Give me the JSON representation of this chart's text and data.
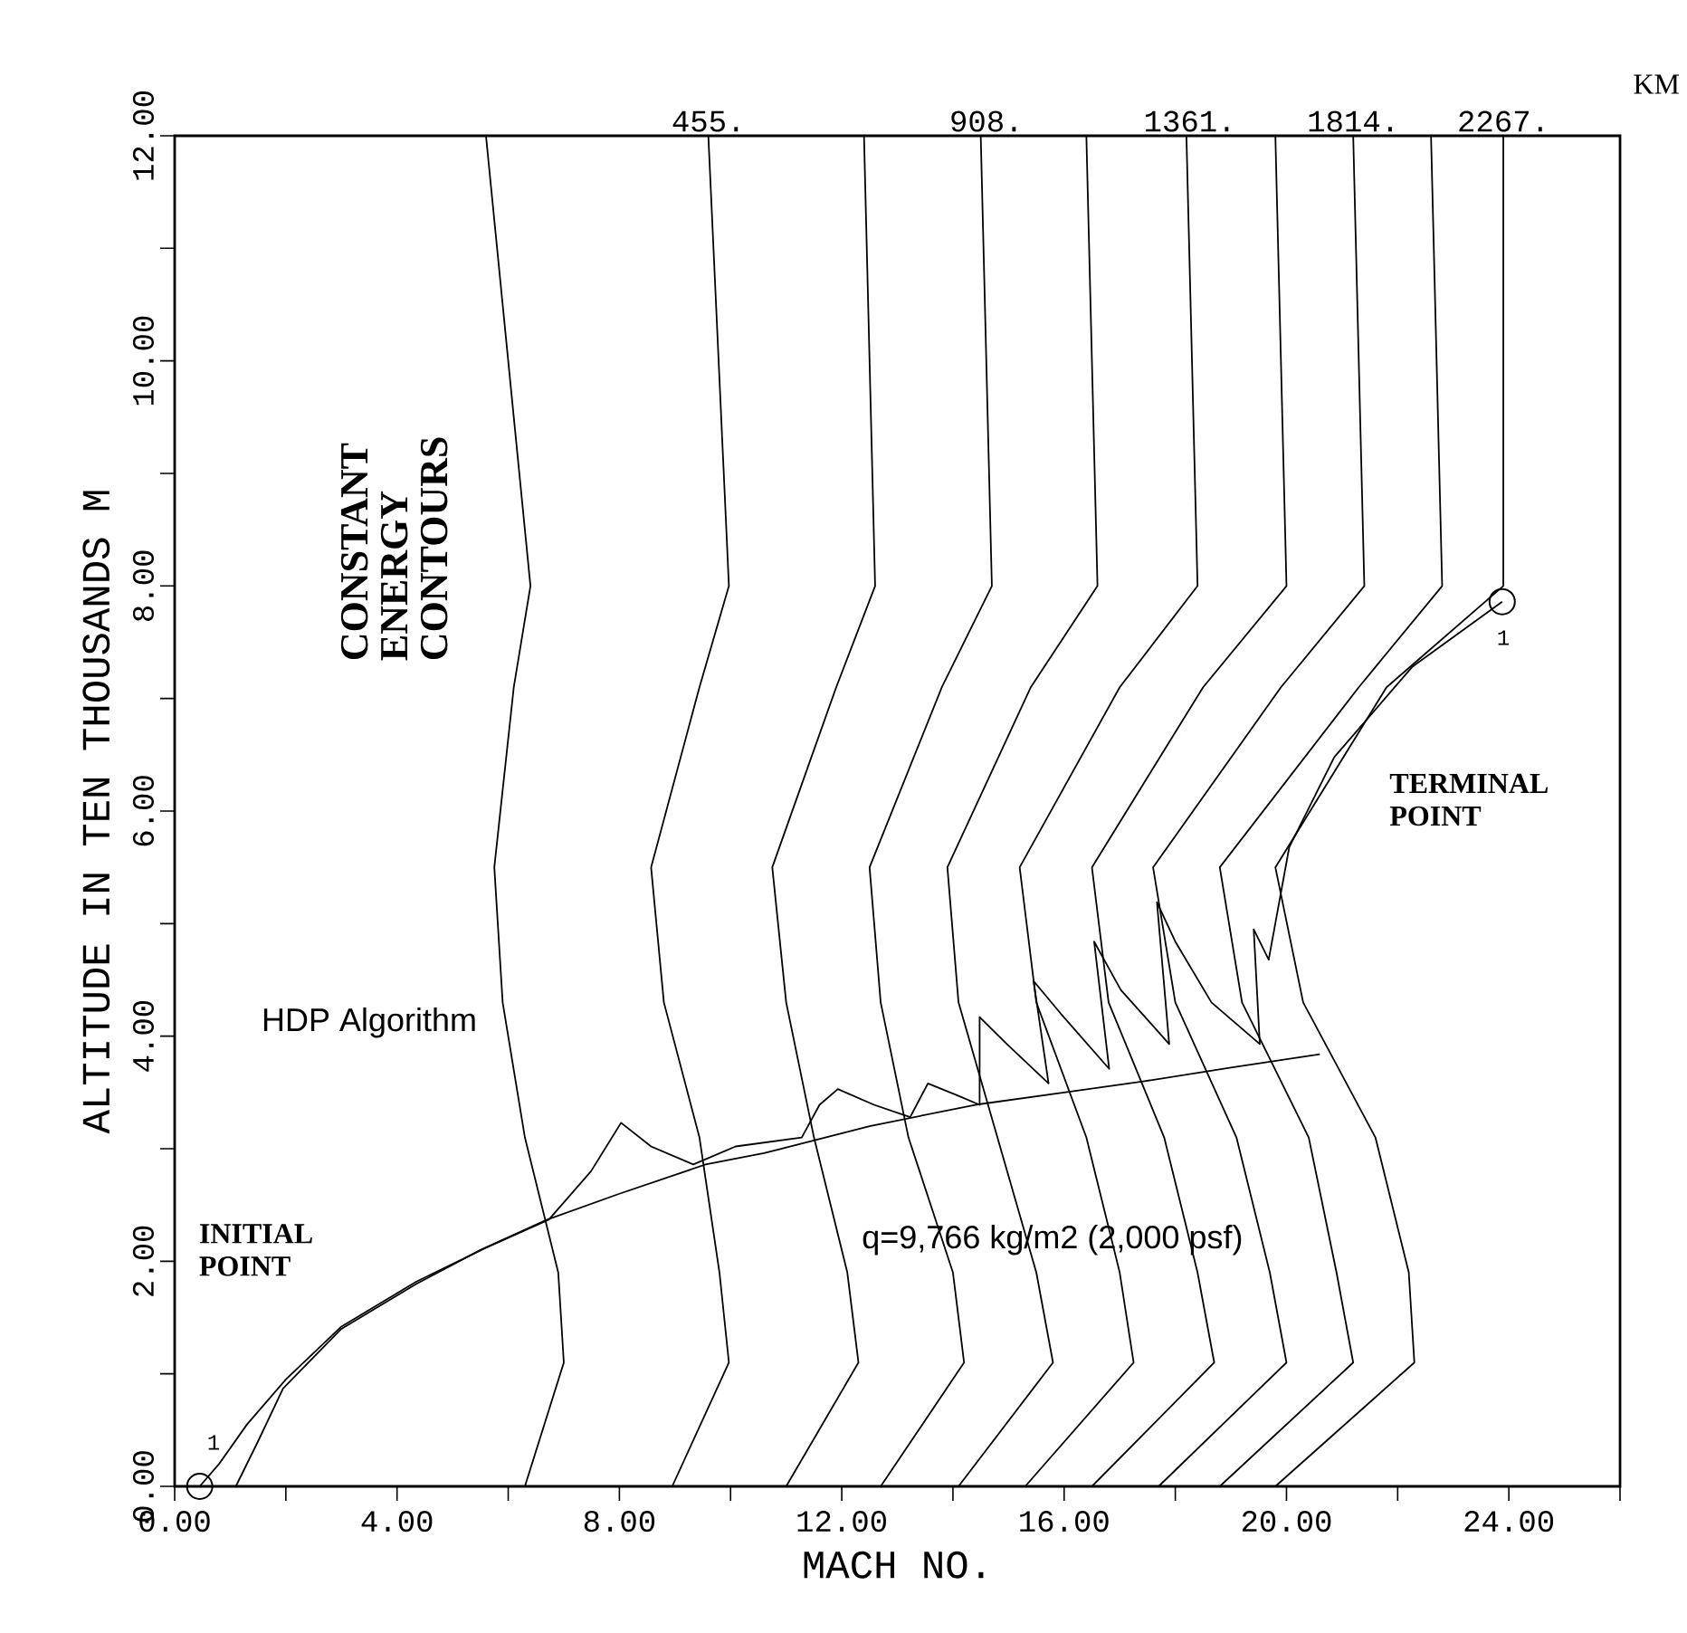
{
  "chart_data": {
    "type": "line",
    "xlabel": "MACH NO.",
    "ylabel": "ALTITUDE IN TEN THOUSANDS M",
    "xlim": [
      0,
      26
    ],
    "ylim": [
      0,
      12
    ],
    "xticks": [
      {
        "value": 0,
        "label": "0.00"
      },
      {
        "value": 2,
        "label": null
      },
      {
        "value": 4,
        "label": "4.00"
      },
      {
        "value": 6,
        "label": null
      },
      {
        "value": 8,
        "label": "8.00"
      },
      {
        "value": 10,
        "label": null
      },
      {
        "value": 12,
        "label": "12.00"
      },
      {
        "value": 14,
        "label": null
      },
      {
        "value": 16,
        "label": "16.00"
      },
      {
        "value": 18,
        "label": null
      },
      {
        "value": 20,
        "label": "20.00"
      },
      {
        "value": 22,
        "label": null
      },
      {
        "value": 24,
        "label": "24.00"
      },
      {
        "value": 26,
        "label": null
      }
    ],
    "yticks": [
      {
        "value": 0,
        "label": "0.00"
      },
      {
        "value": 1,
        "label": null
      },
      {
        "value": 2,
        "label": "2.00"
      },
      {
        "value": 3,
        "label": null
      },
      {
        "value": 4,
        "label": "4.00"
      },
      {
        "value": 5,
        "label": null
      },
      {
        "value": 6,
        "label": "6.00"
      },
      {
        "value": 7,
        "label": null
      },
      {
        "value": 8,
        "label": "8.00"
      },
      {
        "value": 9,
        "label": null
      },
      {
        "value": 10,
        "label": "10.00"
      },
      {
        "value": 11,
        "label": null
      },
      {
        "value": 12,
        "label": "12.00"
      }
    ],
    "series": [
      {
        "color": "#000000",
        "x": [
          6.3,
          7.0,
          6.9,
          6.3,
          5.9,
          5.75,
          6.1,
          6.4,
          5.6
        ],
        "values": [
          0,
          1.1,
          1.9,
          3.1,
          4.3,
          5.5,
          7.1,
          8.0,
          12
        ]
      },
      {
        "color": "#000000",
        "x": [
          8.95,
          9.97,
          9.8,
          9.44,
          8.8,
          8.57,
          9.44,
          9.97,
          9.6
        ],
        "values": [
          0,
          1.1,
          1.9,
          3.1,
          4.3,
          5.5,
          7.1,
          8.0,
          12
        ]
      },
      {
        "color": "#000000",
        "x": [
          11.0,
          12.3,
          12.1,
          11.5,
          11.0,
          10.75,
          11.9,
          12.6,
          12.4
        ],
        "values": [
          0,
          1.1,
          1.9,
          3.1,
          4.3,
          5.5,
          7.1,
          8.0,
          12
        ]
      },
      {
        "color": "#000000",
        "x": [
          12.7,
          14.2,
          14.0,
          13.2,
          12.7,
          12.5,
          13.8,
          14.7,
          14.5
        ],
        "values": [
          0,
          1.1,
          1.9,
          3.1,
          4.3,
          5.5,
          7.1,
          8.0,
          12
        ]
      },
      {
        "color": "#000000",
        "x": [
          14.1,
          15.8,
          15.5,
          14.8,
          14.1,
          13.9,
          15.4,
          16.6,
          16.4
        ],
        "values": [
          0,
          1.1,
          1.9,
          3.1,
          4.3,
          5.5,
          7.1,
          8.0,
          12
        ]
      },
      {
        "color": "#000000",
        "x": [
          15.3,
          17.25,
          17.0,
          16.4,
          15.5,
          15.2,
          17.0,
          18.4,
          18.2
        ],
        "values": [
          0,
          1.1,
          1.9,
          3.1,
          4.3,
          5.5,
          7.1,
          8.0,
          12
        ]
      },
      {
        "color": "#000000",
        "x": [
          16.5,
          18.7,
          18.4,
          17.8,
          16.8,
          16.5,
          18.5,
          20.0,
          19.8
        ],
        "values": [
          0,
          1.1,
          1.9,
          3.1,
          4.3,
          5.5,
          7.1,
          8.0,
          12
        ]
      },
      {
        "color": "#000000",
        "x": [
          17.7,
          20.0,
          19.7,
          19.1,
          18.0,
          17.6,
          19.9,
          21.4,
          21.2
        ],
        "values": [
          0,
          1.1,
          1.9,
          3.1,
          4.3,
          5.5,
          7.1,
          8.0,
          12
        ]
      },
      {
        "color": "#000000",
        "x": [
          18.8,
          21.2,
          20.9,
          20.4,
          19.2,
          18.8,
          21.3,
          22.8,
          22.6
        ],
        "values": [
          0,
          1.1,
          1.9,
          3.1,
          4.3,
          5.5,
          7.1,
          8.0,
          12
        ]
      },
      {
        "color": "#000000",
        "x": [
          19.8,
          22.3,
          22.2,
          21.6,
          20.3,
          19.8,
          21.8,
          23.9,
          23.9
        ],
        "values": [
          0,
          1.1,
          1.9,
          3.1,
          4.3,
          5.5,
          7.1,
          8.0,
          12
        ]
      },
      {
        "color": "#000000",
        "x": [
          1.1,
          1.5,
          1.95,
          3.0,
          4.35,
          5.5,
          6.7,
          8.0,
          9.55,
          10.6,
          12.5,
          14.4,
          16.0,
          17.45,
          19.0,
          20.6
        ],
        "values": [
          0,
          0.4,
          0.87,
          1.4,
          1.8,
          2.1,
          2.37,
          2.6,
          2.86,
          2.96,
          3.2,
          3.39,
          3.5,
          3.6,
          3.72,
          3.84
        ]
      },
      {
        "color": "#000000",
        "x": [
          0.45,
          0.8,
          1.3,
          2.0,
          3.0,
          4.35,
          5.6,
          6.73,
          7.49,
          8.03,
          8.57,
          9.33,
          10.09,
          11.28,
          11.6,
          11.93,
          12.58,
          13.23,
          13.55,
          14.1,
          14.48,
          14.48,
          14.97,
          15.72,
          15.45,
          15.94,
          16.81,
          16.54,
          17.02,
          17.89,
          17.67,
          18.0,
          18.65,
          19.52,
          19.41,
          19.68,
          20.05,
          20.86,
          22.26,
          23.88
        ],
        "values": [
          0,
          0.2,
          0.55,
          0.95,
          1.42,
          1.82,
          2.12,
          2.37,
          2.8,
          3.23,
          3.02,
          2.86,
          3.02,
          3.1,
          3.39,
          3.53,
          3.39,
          3.28,
          3.58,
          3.47,
          3.39,
          4.17,
          3.93,
          3.58,
          4.49,
          4.2,
          3.71,
          4.84,
          4.41,
          3.93,
          5.19,
          4.84,
          4.3,
          3.93,
          4.95,
          4.68,
          5.68,
          6.48,
          7.28,
          7.86
        ]
      },
      {
        "type": "scatter",
        "color": "#000000",
        "marker": "circle",
        "x": [
          0.45,
          23.88
        ],
        "values": [
          0,
          7.86
        ]
      }
    ],
    "annotations": [
      {
        "text": "455.",
        "x": 9.6,
        "y": 12
      },
      {
        "text": "908.",
        "x": 14.6,
        "y": 12
      },
      {
        "text": "1361.",
        "x": 18.26,
        "y": 12
      },
      {
        "text": "1814.",
        "x": 21.2,
        "y": 12
      },
      {
        "text": "2267.",
        "x": 23.9,
        "y": 12
      },
      "KM",
      "CONSTANT ENERGY CONTOURS",
      "HDP Algorithm",
      "q=9,766 kg/m2 (2,000 psf)",
      "INITIAL POINT",
      "TERMINAL POINT",
      "1",
      "1"
    ]
  }
}
